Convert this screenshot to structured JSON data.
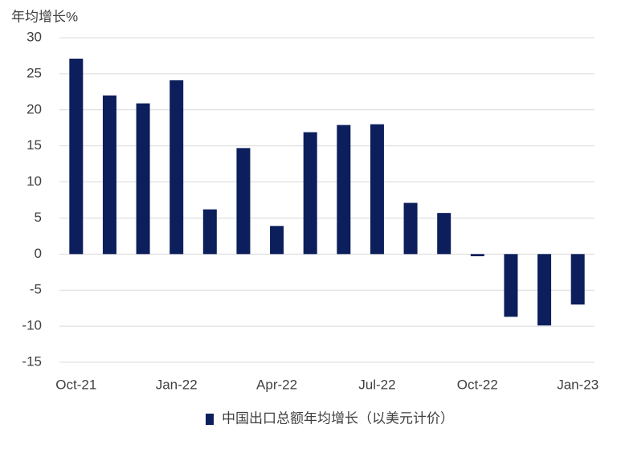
{
  "chart_data": {
    "type": "bar",
    "y_label": "年均增长%",
    "categories": [
      "Oct-21",
      null,
      null,
      "Jan-22",
      null,
      null,
      "Apr-22",
      null,
      null,
      "Jul-22",
      null,
      null,
      "Oct-22",
      null,
      null,
      "Jan-23"
    ],
    "series": [
      {
        "name": "中国出口总额年均增长（以美元计价）",
        "color": "#0c1f5c",
        "values": [
          27.1,
          22.0,
          20.9,
          24.1,
          6.2,
          14.7,
          3.9,
          16.9,
          17.9,
          18.0,
          7.1,
          5.7,
          -0.3,
          -8.7,
          -9.9,
          -7.0
        ]
      }
    ],
    "ylim": [
      -15,
      30
    ],
    "yticks": [
      -15,
      -10,
      -5,
      0,
      5,
      10,
      15,
      20,
      25,
      30
    ],
    "grid": true
  }
}
